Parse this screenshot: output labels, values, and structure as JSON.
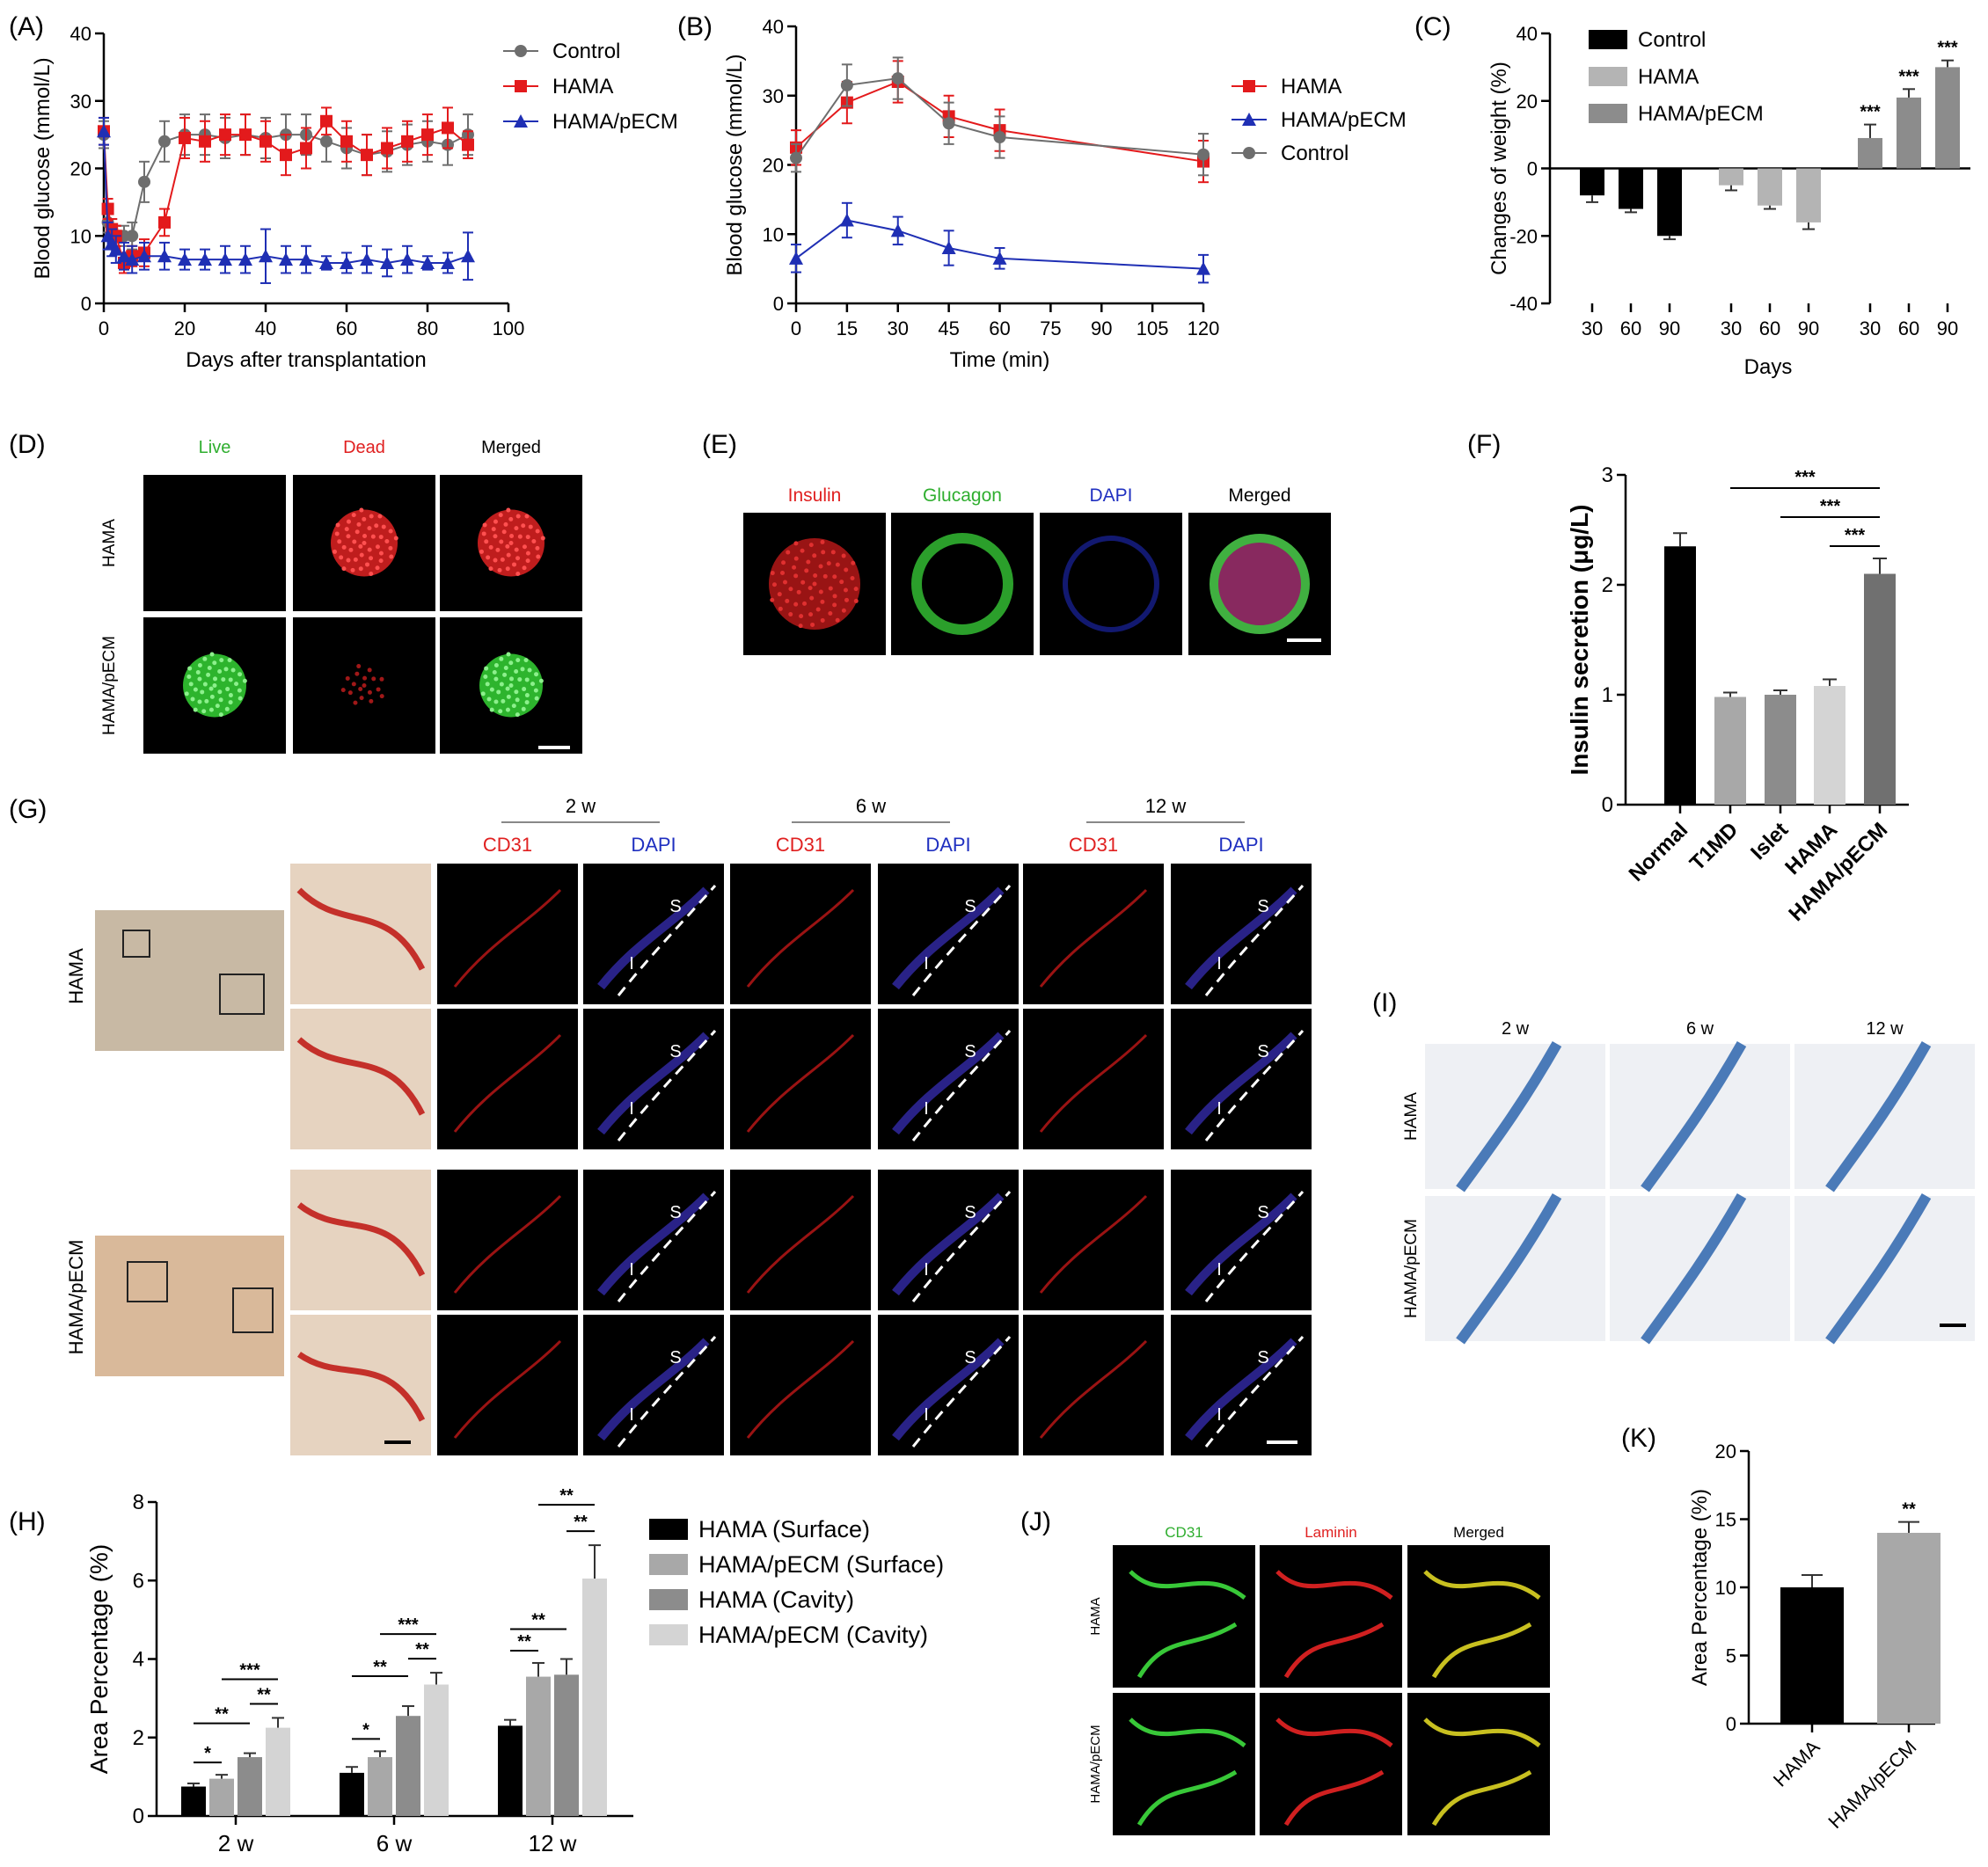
{
  "panel_letters": {
    "A": "(A)",
    "B": "(B)",
    "C": "(C)",
    "D": "(D)",
    "E": "(E)",
    "F": "(F)",
    "G": "(G)",
    "H": "(H)",
    "I": "(I)",
    "J": "(J)",
    "K": "(K)"
  },
  "colors": {
    "black": "#000000",
    "red": "#e31a1c",
    "blue": "#1f2fb4",
    "gray": "#6e6e6e",
    "light_gray": "#b4b4b4",
    "mid_gray": "#8c8c8c",
    "dark_gray": "#707070",
    "very_light": "#d4d4d4",
    "green_label": "#2fae2f",
    "red_label": "#e02020",
    "blue_label": "#2030c0"
  },
  "micro": {
    "D": {
      "cols": [
        "Live",
        "Dead",
        "Merged"
      ],
      "rows": [
        "HAMA",
        "HAMA/pECM"
      ]
    },
    "E": {
      "cols": [
        "Insulin",
        "Glucagon",
        "DAPI",
        "Merged"
      ]
    },
    "G": {
      "times": [
        "2 w",
        "6 w",
        "12 w"
      ],
      "stain_cd31": "CD31",
      "stain_dapi": "DAPI",
      "rows": [
        "HAMA",
        "HAMA/pECM"
      ],
      "s": "S",
      "i": "I"
    },
    "I": {
      "times": [
        "2 w",
        "6 w",
        "12 w"
      ],
      "rows": [
        "HAMA",
        "HAMA/pECM"
      ]
    },
    "J": {
      "cols": [
        "CD31",
        "Laminin",
        "Merged"
      ],
      "rows": [
        "HAMA",
        "HAMA/pECM"
      ]
    }
  },
  "chart_data": [
    {
      "id": "A",
      "type": "line",
      "xlabel": "Days after transplantation",
      "ylabel": "Blood glucose (mmol/L)",
      "xlim": [
        0,
        100
      ],
      "ylim": [
        0,
        40
      ],
      "xticks": [
        0,
        20,
        40,
        60,
        80,
        100
      ],
      "yticks": [
        0,
        10,
        20,
        30,
        40
      ],
      "legend": "top-right",
      "series": [
        {
          "name": "Control",
          "color": "#6e6e6e",
          "marker": "circle",
          "x": [
            0,
            1,
            2,
            3,
            5,
            7,
            10,
            15,
            20,
            25,
            30,
            35,
            40,
            45,
            50,
            55,
            60,
            65,
            70,
            75,
            80,
            85,
            90
          ],
          "y": [
            25,
            12,
            11,
            10,
            10,
            10,
            18,
            24,
            25,
            25,
            24.5,
            25,
            24.5,
            25,
            25,
            24,
            23,
            22,
            22.5,
            23.5,
            24,
            23.5,
            25
          ],
          "err": [
            2,
            1.5,
            1.5,
            1.5,
            1.5,
            2,
            3,
            3,
            3,
            3,
            3,
            3,
            3,
            3,
            3,
            3,
            3,
            3,
            3,
            3,
            3,
            3,
            3
          ]
        },
        {
          "name": "HAMA",
          "color": "#e31a1c",
          "marker": "square",
          "x": [
            0,
            1,
            2,
            3,
            5,
            7,
            10,
            15,
            20,
            25,
            30,
            35,
            40,
            45,
            50,
            55,
            60,
            65,
            70,
            75,
            80,
            85,
            90
          ],
          "y": [
            25.5,
            14,
            11,
            10,
            6,
            7,
            7.5,
            12,
            24.5,
            24,
            25,
            25,
            24,
            22,
            23,
            27,
            24,
            22,
            23,
            24,
            25,
            26,
            23.5
          ],
          "err": [
            2,
            1.5,
            1.5,
            1.5,
            1.5,
            1.5,
            2,
            2,
            3,
            3,
            3,
            3,
            3,
            3,
            3,
            2,
            3,
            3,
            3,
            3,
            3,
            3,
            2
          ]
        },
        {
          "name": "HAMA/pECM",
          "color": "#1f2fb4",
          "marker": "triangle",
          "x": [
            0,
            1,
            2,
            3,
            5,
            7,
            10,
            15,
            20,
            25,
            30,
            35,
            40,
            45,
            50,
            55,
            60,
            65,
            70,
            75,
            80,
            85,
            90
          ],
          "y": [
            25.5,
            10,
            9,
            8,
            7,
            6.5,
            7,
            7,
            6.5,
            6.5,
            6.5,
            6.5,
            7,
            6.5,
            6.5,
            6,
            6,
            6.5,
            6,
            6.5,
            6,
            6,
            7
          ],
          "err": [
            2,
            2,
            2,
            2,
            2,
            2,
            2,
            2,
            1.5,
            1.5,
            2,
            2,
            4,
            2,
            2,
            1,
            1.5,
            2,
            2,
            2,
            1,
            1.5,
            3.5
          ]
        }
      ]
    },
    {
      "id": "B",
      "type": "line",
      "xlabel": "Time (min)",
      "ylabel": "Blood glucose (mmol/L)",
      "xlim": [
        0,
        120
      ],
      "ylim": [
        0,
        40
      ],
      "xticks": [
        0,
        15,
        30,
        45,
        60,
        75,
        90,
        105,
        120
      ],
      "yticks": [
        0,
        10,
        20,
        30,
        40
      ],
      "legend": "top-right",
      "series": [
        {
          "name": "HAMA",
          "color": "#e31a1c",
          "marker": "square",
          "x": [
            0,
            15,
            30,
            45,
            60,
            120
          ],
          "y": [
            22.5,
            29,
            32,
            27,
            25,
            20.5
          ],
          "err": [
            2.5,
            3,
            3,
            3,
            3,
            3
          ]
        },
        {
          "name": "HAMA/pECM",
          "color": "#1f2fb4",
          "marker": "triangle",
          "x": [
            0,
            15,
            30,
            45,
            60,
            120
          ],
          "y": [
            6.5,
            12,
            10.5,
            8,
            6.5,
            5
          ],
          "err": [
            2,
            2.5,
            2,
            2.5,
            1.5,
            2
          ]
        },
        {
          "name": "Control",
          "color": "#6e6e6e",
          "marker": "circle",
          "x": [
            0,
            15,
            30,
            45,
            60,
            120
          ],
          "y": [
            21,
            31.5,
            32.5,
            26,
            24,
            21.5
          ],
          "err": [
            2,
            3,
            3,
            3,
            3,
            3
          ]
        }
      ]
    },
    {
      "id": "C",
      "type": "bar",
      "xlabel": "Days",
      "ylabel": "Changes of weight (%)",
      "ylim": [
        -40,
        40
      ],
      "yticks": [
        -40,
        -20,
        0,
        20,
        40
      ],
      "legend": "top-left",
      "categories": [
        "30",
        "60",
        "90"
      ],
      "series": [
        {
          "name": "Control",
          "color": "#000000",
          "values": [
            -8,
            -12,
            -20
          ],
          "err": [
            2,
            1,
            1
          ]
        },
        {
          "name": "HAMA",
          "color": "#b4b4b4",
          "values": [
            -5,
            -11,
            -16
          ],
          "err": [
            1.5,
            1,
            2
          ]
        },
        {
          "name": "HAMA/pECM",
          "color": "#8c8c8c",
          "values": [
            9,
            21,
            30
          ],
          "err": [
            4,
            2.5,
            2
          ]
        }
      ],
      "annotations": [
        "***",
        "***",
        "***"
      ]
    },
    {
      "id": "F",
      "type": "bar",
      "ylabel": "Insulin secretion (μg/L)",
      "ylim": [
        0,
        3
      ],
      "yticks": [
        0,
        1,
        2,
        3
      ],
      "categories": [
        "Normal",
        "T1MD",
        "Islet",
        "HAMA",
        "HAMA/pECM"
      ],
      "values": [
        2.35,
        0.98,
        1.0,
        1.08,
        2.1
      ],
      "err": [
        0.12,
        0.04,
        0.04,
        0.06,
        0.14
      ],
      "colors": [
        "#000000",
        "#a8a8a8",
        "#8c8c8c",
        "#d4d4d4",
        "#707070"
      ],
      "annotations": [
        "***",
        "***",
        "***"
      ]
    },
    {
      "id": "H",
      "type": "bar",
      "ylabel": "Area Percentage (%)",
      "ylim": [
        0,
        8
      ],
      "yticks": [
        0,
        2,
        4,
        6,
        8
      ],
      "legend": "top-right",
      "categories": [
        "2 w",
        "6 w",
        "12 w"
      ],
      "series": [
        {
          "name": "HAMA (Surface)",
          "color": "#000000",
          "values": [
            0.75,
            1.1,
            2.3
          ],
          "err": [
            0.08,
            0.15,
            0.15
          ]
        },
        {
          "name": "HAMA/pECM  (Surface)",
          "color": "#a8a8a8",
          "values": [
            0.95,
            1.5,
            3.55
          ],
          "err": [
            0.1,
            0.15,
            0.35
          ]
        },
        {
          "name": "HAMA (Cavity)",
          "color": "#8c8c8c",
          "values": [
            1.5,
            2.55,
            3.6
          ],
          "err": [
            0.1,
            0.25,
            0.4
          ]
        },
        {
          "name": "HAMA/pECM (Cavity)",
          "color": "#d4d4d4",
          "values": [
            2.25,
            3.35,
            6.05
          ],
          "err": [
            0.25,
            0.3,
            0.85
          ]
        }
      ],
      "annotations": {
        "g2w": [
          "*",
          "**",
          "***",
          "**"
        ],
        "g6w": [
          "*",
          "**",
          "***",
          "**"
        ],
        "g12w": [
          "**",
          "**",
          "**",
          "**"
        ]
      }
    },
    {
      "id": "K",
      "type": "bar",
      "ylabel": "Area Percentage (%)",
      "ylim": [
        0,
        20
      ],
      "yticks": [
        0,
        5,
        10,
        15,
        20
      ],
      "categories": [
        "HAMA",
        "HAMA/pECM"
      ],
      "values": [
        10,
        14
      ],
      "err": [
        0.9,
        0.8
      ],
      "colors": [
        "#000000",
        "#a8a8a8"
      ],
      "annotations": [
        "**"
      ]
    }
  ]
}
